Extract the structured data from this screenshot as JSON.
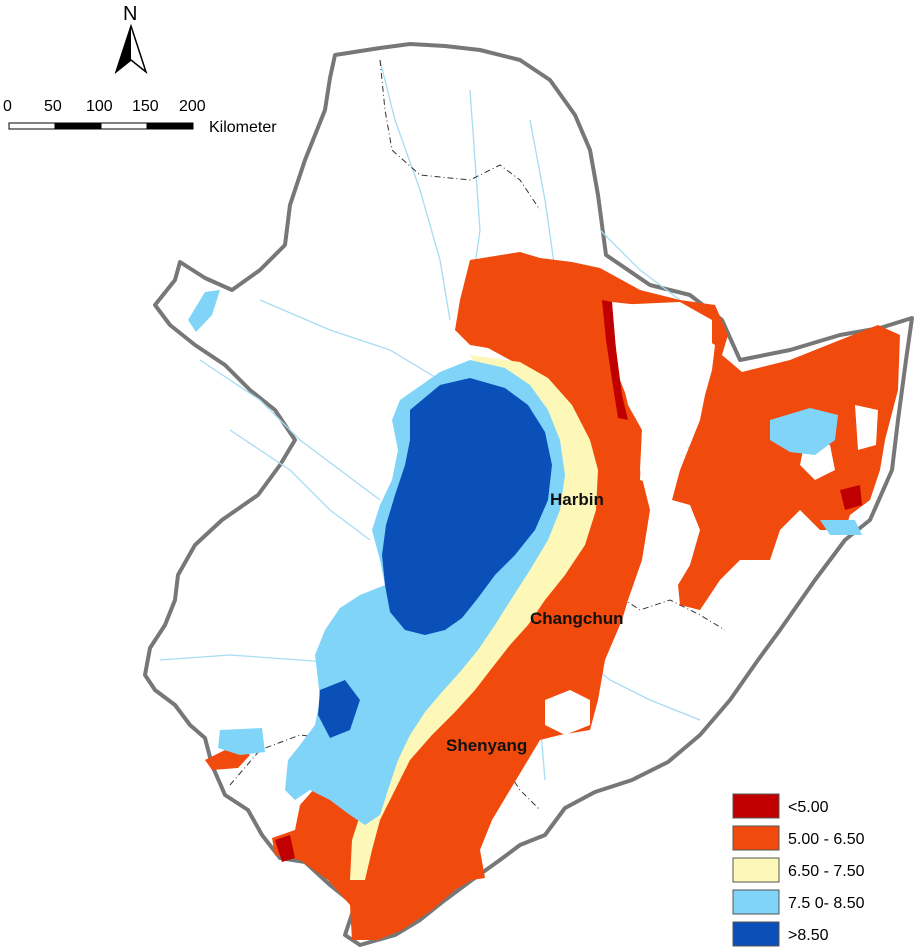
{
  "north_arrow": {
    "letter": "N"
  },
  "scale_bar": {
    "ticks": [
      "0",
      "50",
      "100",
      "150",
      "200"
    ],
    "unit": "Kilometer"
  },
  "cities": [
    {
      "name": "Harbin"
    },
    {
      "name": "Changchun"
    },
    {
      "name": "Shenyang"
    }
  ],
  "legend": [
    {
      "label": "<5.00",
      "color": "#c00000"
    },
    {
      "label": "5.00 - 6.50",
      "color": "#f04a0c"
    },
    {
      "label": "6.50 - 7.50",
      "color": "#fdf7b8"
    },
    {
      "label": "7.5 0- 8.50",
      "color": "#80d4f8"
    },
    {
      "label": ">8.50",
      "color": "#0a50b8"
    }
  ],
  "colors": {
    "boundary": "#777777",
    "river": "#a8dcf2",
    "background": "#ffffff"
  }
}
